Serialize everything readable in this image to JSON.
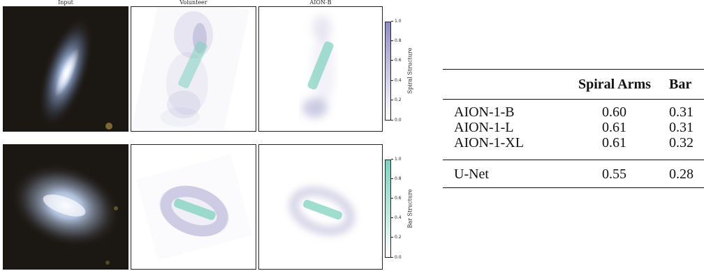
{
  "figure": {
    "column_titles": [
      "Input",
      "Volunteer",
      "AION-B"
    ],
    "rows": [
      {
        "name": "spiral",
        "colorbar_label": "Spiral Structure",
        "colorbar_ticks": [
          "1.0",
          "0.8",
          "0.6",
          "0.4",
          "0.2",
          "0.0"
        ],
        "colorbar_color": "#8f8cc0"
      },
      {
        "name": "bar",
        "colorbar_label": "Bar Structure",
        "colorbar_ticks": [
          "1.0",
          "0.8",
          "0.6",
          "0.4",
          "0.2",
          "0.0"
        ],
        "colorbar_color": "#7fd1bf"
      }
    ]
  },
  "table": {
    "headers": [
      "",
      "Spiral Arms",
      "Bar"
    ],
    "rows": [
      [
        "AION-1-B",
        "0.60",
        "0.31"
      ],
      [
        "AION-1-L",
        "0.61",
        "0.31"
      ],
      [
        "AION-1-XL",
        "0.61",
        "0.32"
      ],
      [
        "U-Net",
        "0.55",
        "0.28"
      ]
    ]
  }
}
